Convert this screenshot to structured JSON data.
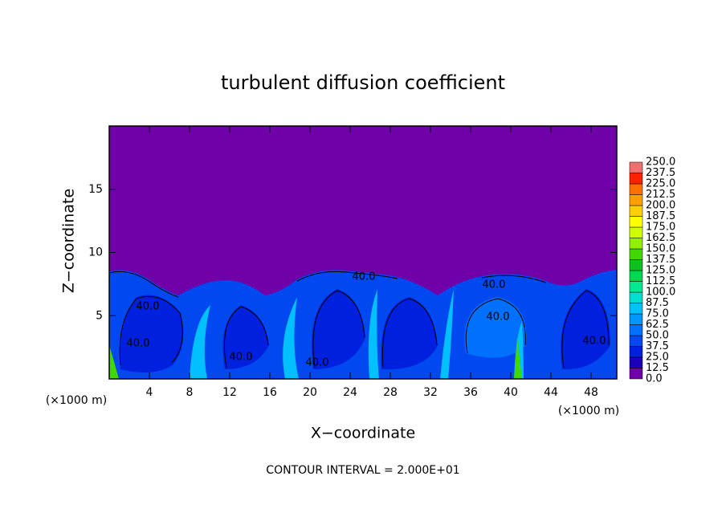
{
  "chart_data": {
    "type": "contour",
    "title": "turbulent diffusion coefficient",
    "x_label": "X−coordinate",
    "y_label": "Z−coordinate",
    "x_unit_labels": [
      "(×1000 m)",
      "(×1000 m)"
    ],
    "footnote": "CONTOUR INTERVAL = 2.000E+01",
    "xlim": [
      0,
      50.56
    ],
    "ylim": [
      0,
      20
    ],
    "xticks": [
      4,
      8,
      12,
      16,
      20,
      24,
      28,
      32,
      36,
      40,
      44,
      48
    ],
    "yticks": [
      5,
      10,
      15
    ],
    "contour_labels": [
      "40.0",
      "40.0",
      "40.0",
      "40.0",
      "40.0",
      "40.0",
      "40.0",
      "40.0"
    ],
    "levels": [
      {
        "value": 0,
        "label": "0.0"
      },
      {
        "value": 12.5,
        "label": "12.5"
      },
      {
        "value": 25,
        "label": "25.0"
      },
      {
        "value": 37.5,
        "label": "37.5"
      },
      {
        "value": 50,
        "label": "50.0"
      },
      {
        "value": 62.5,
        "label": "62.5"
      },
      {
        "value": 75,
        "label": "75.0"
      },
      {
        "value": 87.5,
        "label": "87.5"
      },
      {
        "value": 100,
        "label": "100.0"
      },
      {
        "value": 112.5,
        "label": "112.5"
      },
      {
        "value": 125,
        "label": "125.0"
      },
      {
        "value": 137.5,
        "label": "137.5"
      },
      {
        "value": 150,
        "label": "150.0"
      },
      {
        "value": 162.5,
        "label": "162.5"
      },
      {
        "value": 175,
        "label": "175.0"
      },
      {
        "value": 187.5,
        "label": "187.5"
      },
      {
        "value": 200,
        "label": "200.0"
      },
      {
        "value": 212.5,
        "label": "212.5"
      },
      {
        "value": 225,
        "label": "225.0"
      },
      {
        "value": 237.5,
        "label": "237.5"
      },
      {
        "value": 250,
        "label": "250.0"
      }
    ],
    "colors": [
      "#7000a8",
      "#1c00b8",
      "#0020e0",
      "#0048f0",
      "#0070ff",
      "#0098ff",
      "#00c0ff",
      "#00e0d0",
      "#00e890",
      "#00d850",
      "#10c020",
      "#40d800",
      "#90f000",
      "#d0ff00",
      "#ffff00",
      "#ffd000",
      "#ffa000",
      "#ff7000",
      "#ff2000",
      "#f07070"
    ]
  }
}
